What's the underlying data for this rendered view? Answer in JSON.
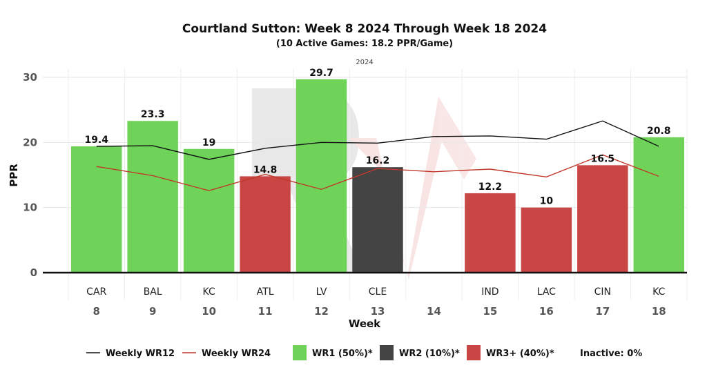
{
  "chart_data": {
    "type": "bar",
    "title": "Courtland Sutton: Week 8 2024 Through Week 18 2024",
    "subtitle": "(10 Active Games: 18.2 PPR/Game)",
    "season_label": "2024",
    "xlabel": "Week",
    "ylabel": "PPR",
    "ylim": [
      0,
      30
    ],
    "yticks": [
      0,
      10,
      20,
      30
    ],
    "grid": true,
    "weeks": [
      "8",
      "9",
      "10",
      "11",
      "12",
      "13",
      "14",
      "15",
      "16",
      "17",
      "18"
    ],
    "opponents": [
      "CAR",
      "BAL",
      "KC",
      "ATL",
      "LV",
      "CLE",
      "",
      "IND",
      "LAC",
      "CIN",
      "KC"
    ],
    "values": [
      19.4,
      23.3,
      19,
      14.8,
      29.7,
      16.2,
      null,
      12.2,
      10,
      16.5,
      20.8
    ],
    "value_labels": [
      "19.4",
      "23.3",
      "19",
      "14.8",
      "29.7",
      "16.2",
      "",
      "12.2",
      "10",
      "16.5",
      "20.8"
    ],
    "tiers": [
      "WR1",
      "WR1",
      "WR1",
      "WR3+",
      "WR1",
      "WR2",
      null,
      "WR3+",
      "WR3+",
      "WR3+",
      "WR1"
    ],
    "tier_colors": {
      "WR1": "#6fd35a",
      "WR2": "#444444",
      "WR3+": "#c94644"
    },
    "lines": [
      {
        "name": "Weekly WR12",
        "color": "#111111",
        "values": [
          19.4,
          19.5,
          17.4,
          19.1,
          20.0,
          19.9,
          20.9,
          21.0,
          20.5,
          23.3,
          19.4
        ]
      },
      {
        "name": "Weekly WR24",
        "color": "#c0392b",
        "values": [
          16.3,
          14.9,
          12.6,
          15.1,
          12.8,
          16.0,
          15.5,
          15.9,
          14.7,
          18.1,
          14.8
        ]
      }
    ],
    "legend": {
      "position": "bottom",
      "items": [
        {
          "kind": "line",
          "label": "Weekly WR12",
          "color": "#111111"
        },
        {
          "kind": "line",
          "label": "Weekly WR24",
          "color": "#c0392b"
        },
        {
          "kind": "box",
          "label": "WR1 (50%)*",
          "color": "#6fd35a"
        },
        {
          "kind": "box",
          "label": "WR2 (10%)*",
          "color": "#444444"
        },
        {
          "kind": "box",
          "label": "WR3+ (40%)*",
          "color": "#c94644"
        },
        {
          "kind": "text",
          "label": "Inactive: 0%"
        }
      ]
    }
  }
}
